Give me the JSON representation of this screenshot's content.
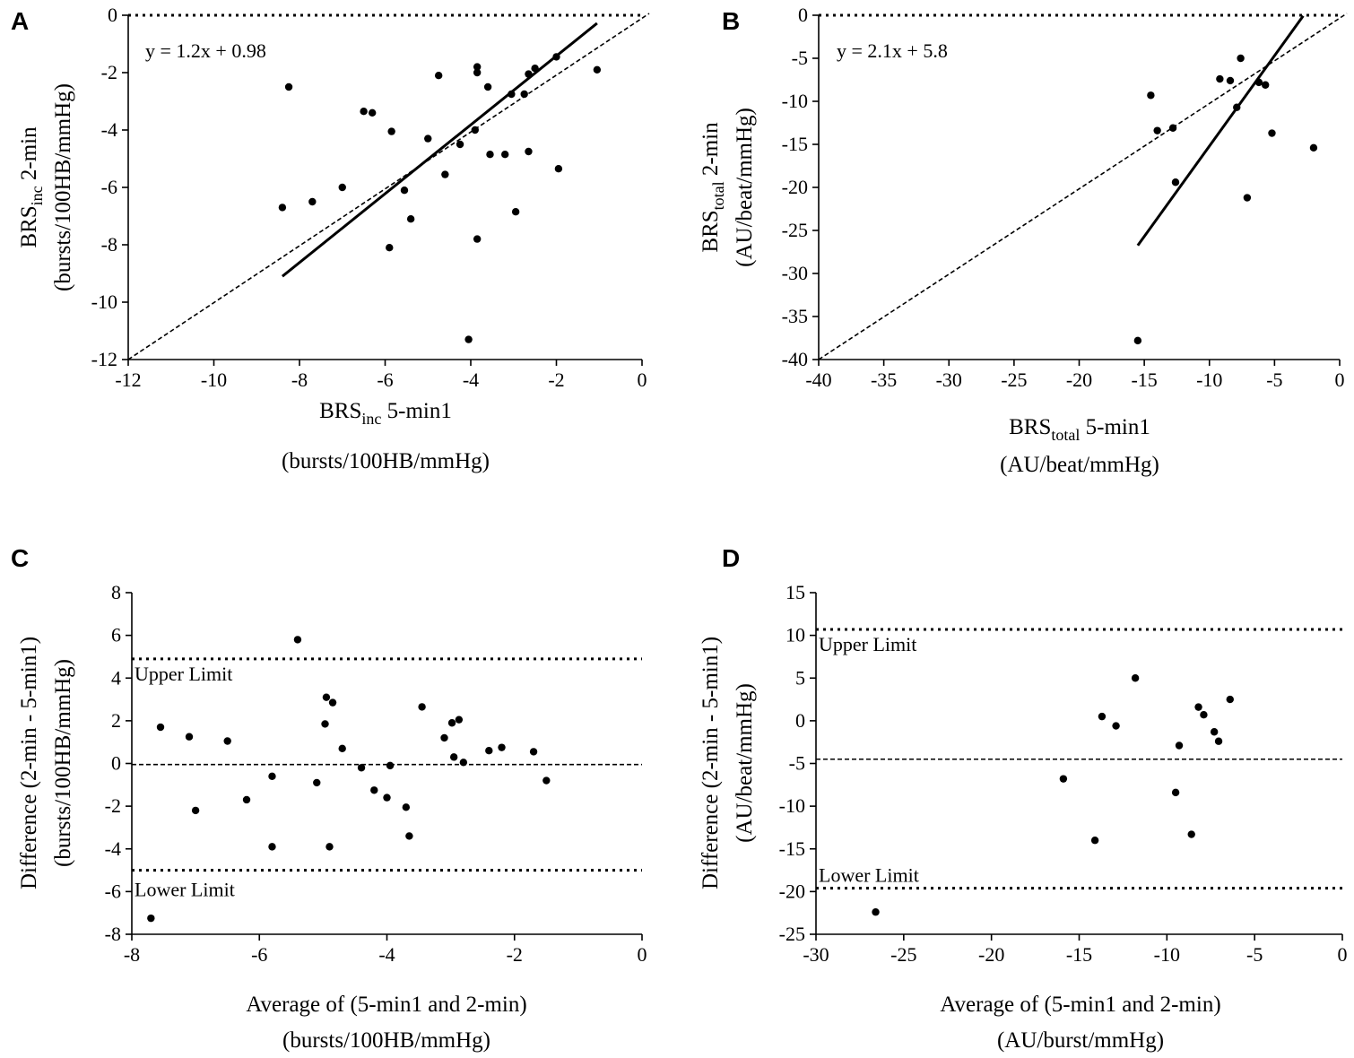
{
  "chart_data": [
    {
      "panel": "A",
      "type": "scatter",
      "xlabel": {
        "base": "BRS",
        "sub": "inc",
        "rest": " 5-min1",
        "units": "(bursts/100HB/mmHg)"
      },
      "ylabel": {
        "base": "BRS",
        "sub": "inc",
        "rest": " 2-min",
        "units": "(bursts/100HB/mmHg)"
      },
      "xlim": [
        -12,
        0
      ],
      "ylim": [
        -12,
        0
      ],
      "xticks": [
        -12,
        -10,
        -8,
        -6,
        -4,
        -2,
        0
      ],
      "yticks": [
        -12,
        -10,
        -8,
        -6,
        -4,
        -2,
        0
      ],
      "equation": "y = 1.2x + 0.98",
      "regression": {
        "slope": 1.2,
        "intercept": 0.98,
        "x_range": [
          -8.4,
          -1.05
        ]
      },
      "identity_line": true,
      "reference_y": 0,
      "points": [
        [
          -8.4,
          -6.7
        ],
        [
          -8.25,
          -2.5
        ],
        [
          -7.7,
          -6.5
        ],
        [
          -7.0,
          -6.0
        ],
        [
          -6.5,
          -3.35
        ],
        [
          -6.3,
          -3.4
        ],
        [
          -5.9,
          -8.1
        ],
        [
          -5.85,
          -4.05
        ],
        [
          -5.55,
          -6.1
        ],
        [
          -5.4,
          -7.1
        ],
        [
          -5.0,
          -4.3
        ],
        [
          -4.75,
          -2.1
        ],
        [
          -4.6,
          -5.55
        ],
        [
          -4.25,
          -4.5
        ],
        [
          -4.05,
          -11.3
        ],
        [
          -3.9,
          -4.0
        ],
        [
          -3.85,
          -2.0
        ],
        [
          -3.85,
          -1.8
        ],
        [
          -3.85,
          -7.8
        ],
        [
          -3.6,
          -2.5
        ],
        [
          -3.55,
          -4.85
        ],
        [
          -3.2,
          -4.85
        ],
        [
          -3.05,
          -2.75
        ],
        [
          -2.95,
          -6.85
        ],
        [
          -2.75,
          -2.75
        ],
        [
          -2.65,
          -4.75
        ],
        [
          -2.65,
          -2.05
        ],
        [
          -2.5,
          -1.85
        ],
        [
          -2.0,
          -1.45
        ],
        [
          -1.95,
          -5.35
        ],
        [
          -1.05,
          -1.9
        ]
      ]
    },
    {
      "panel": "B",
      "type": "scatter",
      "xlabel": {
        "base": "BRS",
        "sub": "total",
        "rest": " 5-min1",
        "units": "(AU/beat/mmHg)"
      },
      "ylabel": {
        "base": "BRS",
        "sub": "total",
        "rest": " 2-min",
        "units": "(AU/beat/mmHg)"
      },
      "xlim": [
        -40,
        0
      ],
      "ylim": [
        -40,
        0
      ],
      "xticks": [
        -40,
        -35,
        -30,
        -25,
        -20,
        -15,
        -10,
        -5,
        0
      ],
      "yticks": [
        -40,
        -35,
        -30,
        -25,
        -20,
        -15,
        -10,
        -5,
        0
      ],
      "equation": "y = 2.1x + 5.8",
      "regression": {
        "slope": 2.1,
        "intercept": 5.8,
        "x_range": [
          -15.5,
          -2.8
        ]
      },
      "identity_line": true,
      "reference_y": 0,
      "points": [
        [
          -15.5,
          -37.8
        ],
        [
          -14.5,
          -9.3
        ],
        [
          -14.0,
          -13.4
        ],
        [
          -12.8,
          -13.1
        ],
        [
          -12.6,
          -19.4
        ],
        [
          -9.2,
          -7.4
        ],
        [
          -8.4,
          -7.6
        ],
        [
          -7.9,
          -10.7
        ],
        [
          -7.6,
          -5.0
        ],
        [
          -7.1,
          -21.2
        ],
        [
          -6.2,
          -7.8
        ],
        [
          -5.7,
          -8.1
        ],
        [
          -5.2,
          -13.7
        ],
        [
          -2.0,
          -15.4
        ]
      ]
    },
    {
      "panel": "C",
      "type": "scatter",
      "xlabel": {
        "text": "Average of (5-min1 and 2-min)",
        "units": "(bursts/100HB/mmHg)"
      },
      "ylabel": {
        "text": "Difference (2-min - 5-min1)",
        "units": "(bursts/100HB/mmHg)"
      },
      "xlim": [
        -8,
        0
      ],
      "ylim": [
        -8,
        8
      ],
      "xticks": [
        -8,
        -6,
        -4,
        -2,
        0
      ],
      "yticks": [
        -8,
        -6,
        -4,
        -2,
        0,
        2,
        4,
        6,
        8
      ],
      "upper_limit": {
        "label": "Upper Limit",
        "value": 4.9
      },
      "lower_limit": {
        "label": "Lower Limit",
        "value": -5.0
      },
      "mean_bias": -0.05,
      "points": [
        [
          -7.7,
          -7.25
        ],
        [
          -7.55,
          1.7
        ],
        [
          -7.1,
          1.25
        ],
        [
          -7.0,
          -2.2
        ],
        [
          -6.5,
          1.05
        ],
        [
          -6.2,
          -1.7
        ],
        [
          -5.8,
          -0.6
        ],
        [
          -5.8,
          -3.9
        ],
        [
          -5.4,
          5.8
        ],
        [
          -5.1,
          -0.9
        ],
        [
          -4.97,
          1.85
        ],
        [
          -4.95,
          3.1
        ],
        [
          -4.9,
          -3.9
        ],
        [
          -4.85,
          2.85
        ],
        [
          -4.7,
          0.7
        ],
        [
          -4.4,
          -0.2
        ],
        [
          -4.2,
          -1.25
        ],
        [
          -4.0,
          -1.6
        ],
        [
          -3.95,
          -0.1
        ],
        [
          -3.7,
          -2.05
        ],
        [
          -3.65,
          -3.4
        ],
        [
          -3.45,
          2.65
        ],
        [
          -3.1,
          1.2
        ],
        [
          -2.98,
          1.9
        ],
        [
          -2.95,
          0.3
        ],
        [
          -2.87,
          2.05
        ],
        [
          -2.8,
          0.05
        ],
        [
          -2.4,
          0.6
        ],
        [
          -2.2,
          0.75
        ],
        [
          -1.7,
          0.55
        ],
        [
          -1.5,
          -0.8
        ]
      ]
    },
    {
      "panel": "D",
      "type": "scatter",
      "xlabel": {
        "text": "Average of (5-min1 and 2-min)",
        "units": "(AU/burst/mmHg)"
      },
      "ylabel": {
        "text": "Difference (2-min - 5-min1)",
        "units": "(AU/beat/mmHg)"
      },
      "xlim": [
        -30,
        0
      ],
      "ylim": [
        -25,
        15
      ],
      "xticks": [
        -30,
        -25,
        -20,
        -15,
        -10,
        -5,
        0
      ],
      "yticks": [
        -25,
        -20,
        -15,
        -10,
        -5,
        0,
        5,
        10,
        15
      ],
      "upper_limit": {
        "label": "Upper Limit",
        "value": 10.7
      },
      "lower_limit": {
        "label": "Lower Limit",
        "value": -19.6
      },
      "mean_bias": -4.5,
      "points": [
        [
          -26.6,
          -22.4
        ],
        [
          -15.9,
          -6.8
        ],
        [
          -14.1,
          -14.0
        ],
        [
          -13.7,
          0.5
        ],
        [
          -12.9,
          -0.6
        ],
        [
          -11.8,
          5.0
        ],
        [
          -9.5,
          -8.4
        ],
        [
          -9.3,
          -2.9
        ],
        [
          -8.6,
          -13.3
        ],
        [
          -8.2,
          1.6
        ],
        [
          -7.9,
          0.7
        ],
        [
          -7.3,
          -1.3
        ],
        [
          -7.05,
          -2.4
        ],
        [
          -6.4,
          2.5
        ]
      ]
    }
  ]
}
